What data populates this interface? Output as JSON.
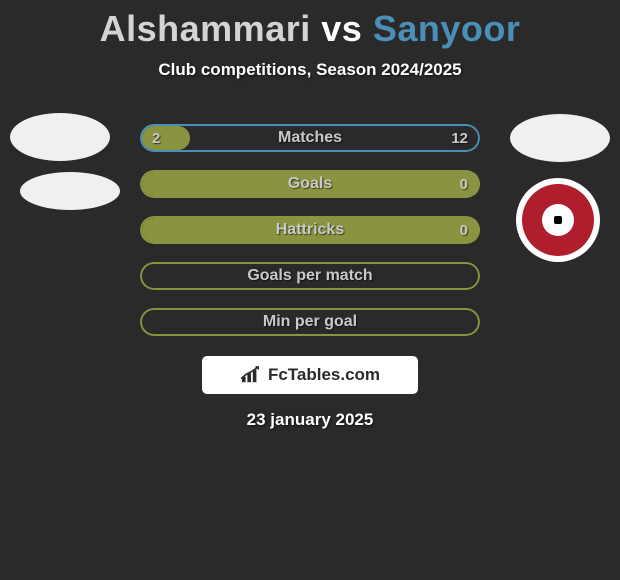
{
  "header": {
    "player1": "Alshammari",
    "vs": "vs",
    "player2": "Sanyoor",
    "subtitle": "Club competitions, Season 2024/2025"
  },
  "colors": {
    "background": "#2a2a2a",
    "player1_text": "#d4d4d4",
    "player2_text": "#4a8fb8",
    "bar_border_blue": "#4a8fb8",
    "bar_fill_olive": "#8a9440",
    "bar_border_olive": "#8a9440",
    "label_text": "#c9c9c9",
    "site_bg": "#ffffff",
    "site_text": "#2b2b2b",
    "badge_red": "#b01e2e"
  },
  "bars": [
    {
      "label": "Matches",
      "left_val": "2",
      "right_val": "12",
      "fill_side": "left",
      "fill_pct": 14,
      "fill_color": "#8a9440",
      "border_color": "#4a8fb8"
    },
    {
      "label": "Goals",
      "left_val": "",
      "right_val": "0",
      "fill_side": "left",
      "fill_pct": 100,
      "fill_color": "#8a9440",
      "border_color": "#8a9440"
    },
    {
      "label": "Hattricks",
      "left_val": "",
      "right_val": "0",
      "fill_side": "left",
      "fill_pct": 100,
      "fill_color": "#8a9440",
      "border_color": "#8a9440"
    },
    {
      "label": "Goals per match",
      "left_val": "",
      "right_val": "",
      "fill_side": "none",
      "fill_pct": 0,
      "fill_color": "#8a9440",
      "border_color": "#8a9440"
    },
    {
      "label": "Min per goal",
      "left_val": "",
      "right_val": "",
      "fill_side": "none",
      "fill_pct": 0,
      "fill_color": "#8a9440",
      "border_color": "#8a9440"
    }
  ],
  "site": {
    "name": "FcTables.com"
  },
  "date": "23 january 2025"
}
